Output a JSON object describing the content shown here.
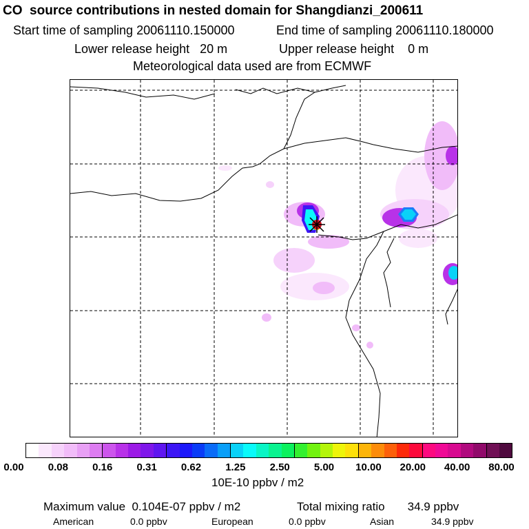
{
  "header": {
    "title": "CO  source contributions in nested domain for Shangdianzi_200611",
    "start": "Start time of sampling 20061110.150000",
    "end": "End time of sampling 20061110.180000",
    "lower": "Lower release height   20 m",
    "upper": "Upper release height    0 m",
    "met": "Meteorological data used are from ECMWF"
  },
  "colorbar": {
    "colors": [
      "#ffffff",
      "#fbe8fd",
      "#f6d2fb",
      "#f1bcf9",
      "#e8a0f5",
      "#dd7cf1",
      "#cc55ec",
      "#b832e8",
      "#9c1be6",
      "#7f17ea",
      "#5f16f0",
      "#3d17f5",
      "#1c19fa",
      "#0a3cf7",
      "#0a6cf8",
      "#0a9ff8",
      "#0ad2f8",
      "#0afafa",
      "#0af5c5",
      "#0af390",
      "#0cf15e",
      "#34f030",
      "#72f210",
      "#b4f50a",
      "#eef50a",
      "#fde00a",
      "#fdb50a",
      "#fd8c0a",
      "#fd600a",
      "#fd2a0a",
      "#fd0a3c",
      "#fd0a80",
      "#f00a96",
      "#d80a90",
      "#b00a7e",
      "#900a6a",
      "#701055",
      "#4f0a3e"
    ],
    "major_after": [
      5,
      10,
      15,
      20,
      25,
      30,
      35
    ],
    "tick_labels": [
      "0.00",
      "0.08",
      "0.16",
      "0.31",
      "0.62",
      "1.25",
      "2.50",
      "5.00",
      "10.00",
      "20.00",
      "40.00",
      "80.00"
    ],
    "units": "10E-10 ppbv / m2"
  },
  "footer": {
    "max": "Maximum value  0.104E-07 ppbv / m2",
    "total": "Total mixing ratio       34.9 ppbv",
    "regions": [
      {
        "name": "American",
        "value": "0.0 ppbv"
      },
      {
        "name": "European",
        "value": "0.0 ppbv"
      },
      {
        "name": "Asian",
        "value": "34.9 ppbv"
      }
    ]
  },
  "map": {
    "receptor_marker_color": "#cc1020"
  }
}
